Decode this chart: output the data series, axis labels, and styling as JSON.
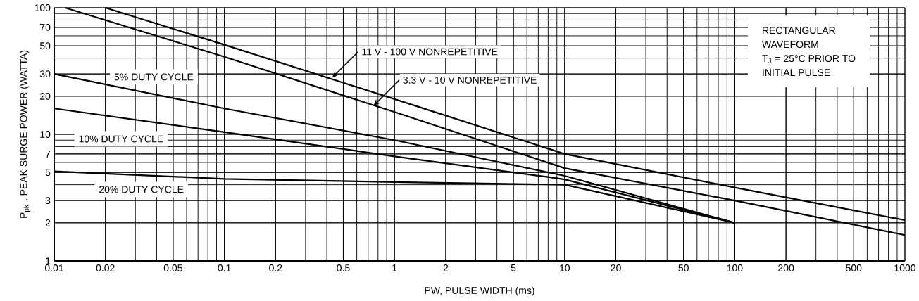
{
  "chart_data": {
    "type": "line",
    "xlabel": "PW, PULSE WIDTH (ms)",
    "ylabel": "P$_{pk}$ , PEAK SURGE POWER (WATTA)",
    "log": "xy",
    "grid": true,
    "xlim": [
      0.01,
      1000
    ],
    "ylim": [
      1,
      100
    ],
    "xticks": [
      0.01,
      0.02,
      0.05,
      0.1,
      0.2,
      0.5,
      1,
      2,
      5,
      10,
      20,
      50,
      100,
      200,
      500,
      1000
    ],
    "yticks": [
      1,
      2,
      3,
      5,
      7,
      10,
      20,
      30,
      50,
      70,
      100
    ],
    "series": [
      {
        "color": "#000000",
        "x": [
          0.02,
          0.1,
          1,
          10,
          100,
          1000
        ],
        "values": [
          100,
          51,
          19,
          7.0,
          3.8,
          2.1
        ]
      },
      {
        "color": "#000000",
        "x": [
          0.0116,
          0.1,
          1,
          10,
          100,
          1000
        ],
        "values": [
          100,
          41,
          15,
          5.4,
          3.0,
          1.6
        ]
      },
      {
        "name": "5% DUTY CYCLE",
        "color": "#000000",
        "x": [
          0.01,
          0.1,
          1,
          10,
          100
        ],
        "values": [
          30,
          16,
          9.0,
          4.7,
          2.0
        ]
      },
      {
        "name": "10% DUTY CYCLE",
        "color": "#000000",
        "x": [
          0.01,
          0.1,
          1,
          8,
          10,
          100
        ],
        "values": [
          16,
          10.4,
          6.7,
          4.6,
          4.4,
          2.0
        ]
      },
      {
        "name": "20% DUTY CYCLE",
        "color": "#000000",
        "x": [
          0.01,
          0.1,
          1,
          10,
          100
        ],
        "values": [
          5.1,
          4.45,
          4.2,
          4.0,
          2.0
        ]
      }
    ],
    "annotations": [
      {
        "text": "11 V - 100 V   NONREPETITIVE",
        "x": 0.43,
        "y": 28
      },
      {
        "text": "3.3 V - 10 V NONREPETITIVE",
        "x": 0.75,
        "y": 16.7
      },
      "RECTANGULAR",
      "WAVEFORM",
      "T$_{J}$ = 25°C PRIOR TO",
      "INITIAL PULSE"
    ]
  }
}
